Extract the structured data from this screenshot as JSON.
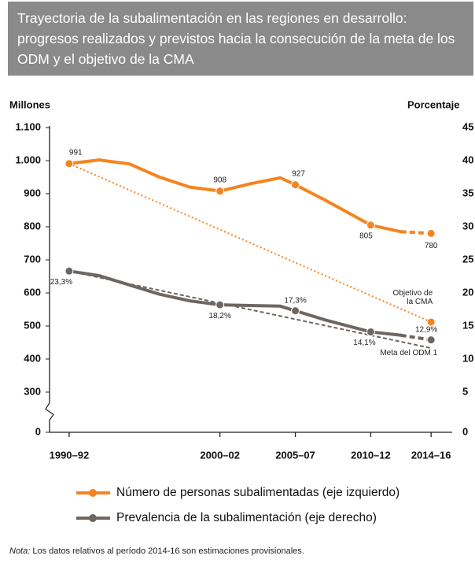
{
  "chart_data": {
    "type": "line",
    "title": "Trayectoria de la subalimentación en las regiones en desarrollo: progresos realizados y previstos hacia la consecución de la meta de los ODM y el objetivo de la CMA",
    "y_label": "Millones",
    "y2_label": "Porcentaje",
    "x": [
      1990,
      1992,
      1994,
      1996,
      1998,
      2000,
      2002,
      2004,
      2005,
      2007,
      2010,
      2012,
      2014
    ],
    "xlim": [
      1988.7,
      2015.4
    ],
    "xticks": [
      {
        "value": 1990,
        "label": "1990–92"
      },
      {
        "value": 2000,
        "label": "2000–02"
      },
      {
        "value": 2005,
        "label": "2005–07"
      },
      {
        "value": 2010,
        "label": "2010–12"
      },
      {
        "value": 2014,
        "label": "2014–16"
      }
    ],
    "ylim": [
      0,
      1100
    ],
    "yticks": [
      0,
      300,
      400,
      500,
      600,
      700,
      800,
      900,
      {
        "value": 1000,
        "label": "1.000"
      },
      {
        "value": 1100,
        "label": "1.100"
      }
    ],
    "y2lim": [
      0,
      45
    ],
    "y2ticks": [
      0,
      5,
      10,
      15,
      20,
      25,
      30,
      35,
      40,
      45
    ],
    "axis_break": true,
    "series": [
      {
        "name": "Número de personas subalimentadas (eje izquierdo)",
        "color": "#f5841f",
        "values": [
          991,
          1002,
          990,
          950,
          920,
          908,
          930,
          948,
          927,
          880,
          805,
          785,
          780
        ],
        "value_labels": [
          "991",
          null,
          null,
          null,
          null,
          "908",
          null,
          null,
          "927",
          null,
          "805",
          null,
          "780"
        ],
        "target": {
          "value": 512,
          "label": "Objetivo de la CMA"
        }
      },
      {
        "name": "Prevalencia de la subalimentación (eje derecho)",
        "color": "#6e6662",
        "axis": "y2",
        "values": [
          23.3,
          22.6,
          21.2,
          19.8,
          18.8,
          18.2,
          18.1,
          18.0,
          17.3,
          15.9,
          14.1,
          13.6,
          12.9
        ],
        "value_labels": [
          "23,3%",
          null,
          null,
          null,
          null,
          "18,2%",
          null,
          null,
          "17,3%",
          null,
          "14,1%",
          null,
          "12,9%"
        ],
        "target": {
          "value": 11.65,
          "label": "Meta del ODM 1"
        }
      }
    ],
    "note_label": "Nota:",
    "note": "Los datos relativos al período 2014-16 son estimaciones provisionales."
  }
}
